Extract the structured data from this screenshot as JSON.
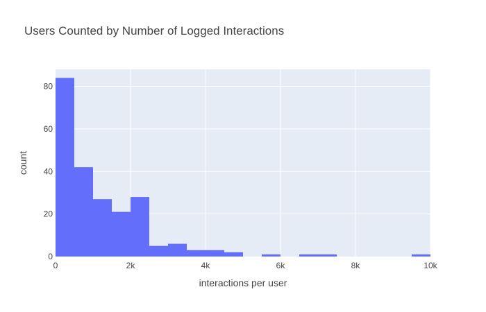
{
  "chart_data": {
    "type": "bar",
    "title": "Users Counted by Number of Logged Interactions",
    "xlabel": "interactions per user",
    "ylabel": "count",
    "xlim": [
      0,
      10000
    ],
    "ylim": [
      0,
      88
    ],
    "bin_width": 500,
    "x_ticks": [
      0,
      2000,
      4000,
      6000,
      8000,
      10000
    ],
    "x_tick_labels": [
      "0",
      "2k",
      "4k",
      "6k",
      "8k",
      "10k"
    ],
    "y_ticks": [
      0,
      20,
      40,
      60,
      80
    ],
    "y_tick_labels": [
      "0",
      "20",
      "40",
      "60",
      "80"
    ],
    "bins": [
      {
        "x0": 0,
        "x1": 500,
        "count": 84
      },
      {
        "x0": 500,
        "x1": 1000,
        "count": 42
      },
      {
        "x0": 1000,
        "x1": 1500,
        "count": 27
      },
      {
        "x0": 1500,
        "x1": 2000,
        "count": 21
      },
      {
        "x0": 2000,
        "x1": 2500,
        "count": 28
      },
      {
        "x0": 2500,
        "x1": 3000,
        "count": 5
      },
      {
        "x0": 3000,
        "x1": 3500,
        "count": 6
      },
      {
        "x0": 3500,
        "x1": 4000,
        "count": 3
      },
      {
        "x0": 4000,
        "x1": 4500,
        "count": 3
      },
      {
        "x0": 4500,
        "x1": 5000,
        "count": 2
      },
      {
        "x0": 5500,
        "x1": 6000,
        "count": 1
      },
      {
        "x0": 6500,
        "x1": 7000,
        "count": 1
      },
      {
        "x0": 7000,
        "x1": 7500,
        "count": 1
      },
      {
        "x0": 9500,
        "x1": 10000,
        "count": 1
      }
    ],
    "grid": true,
    "colors": {
      "bar": "#636efa",
      "plot_bg": "#e5ecf6",
      "grid": "#ffffff",
      "text": "#444444"
    }
  }
}
